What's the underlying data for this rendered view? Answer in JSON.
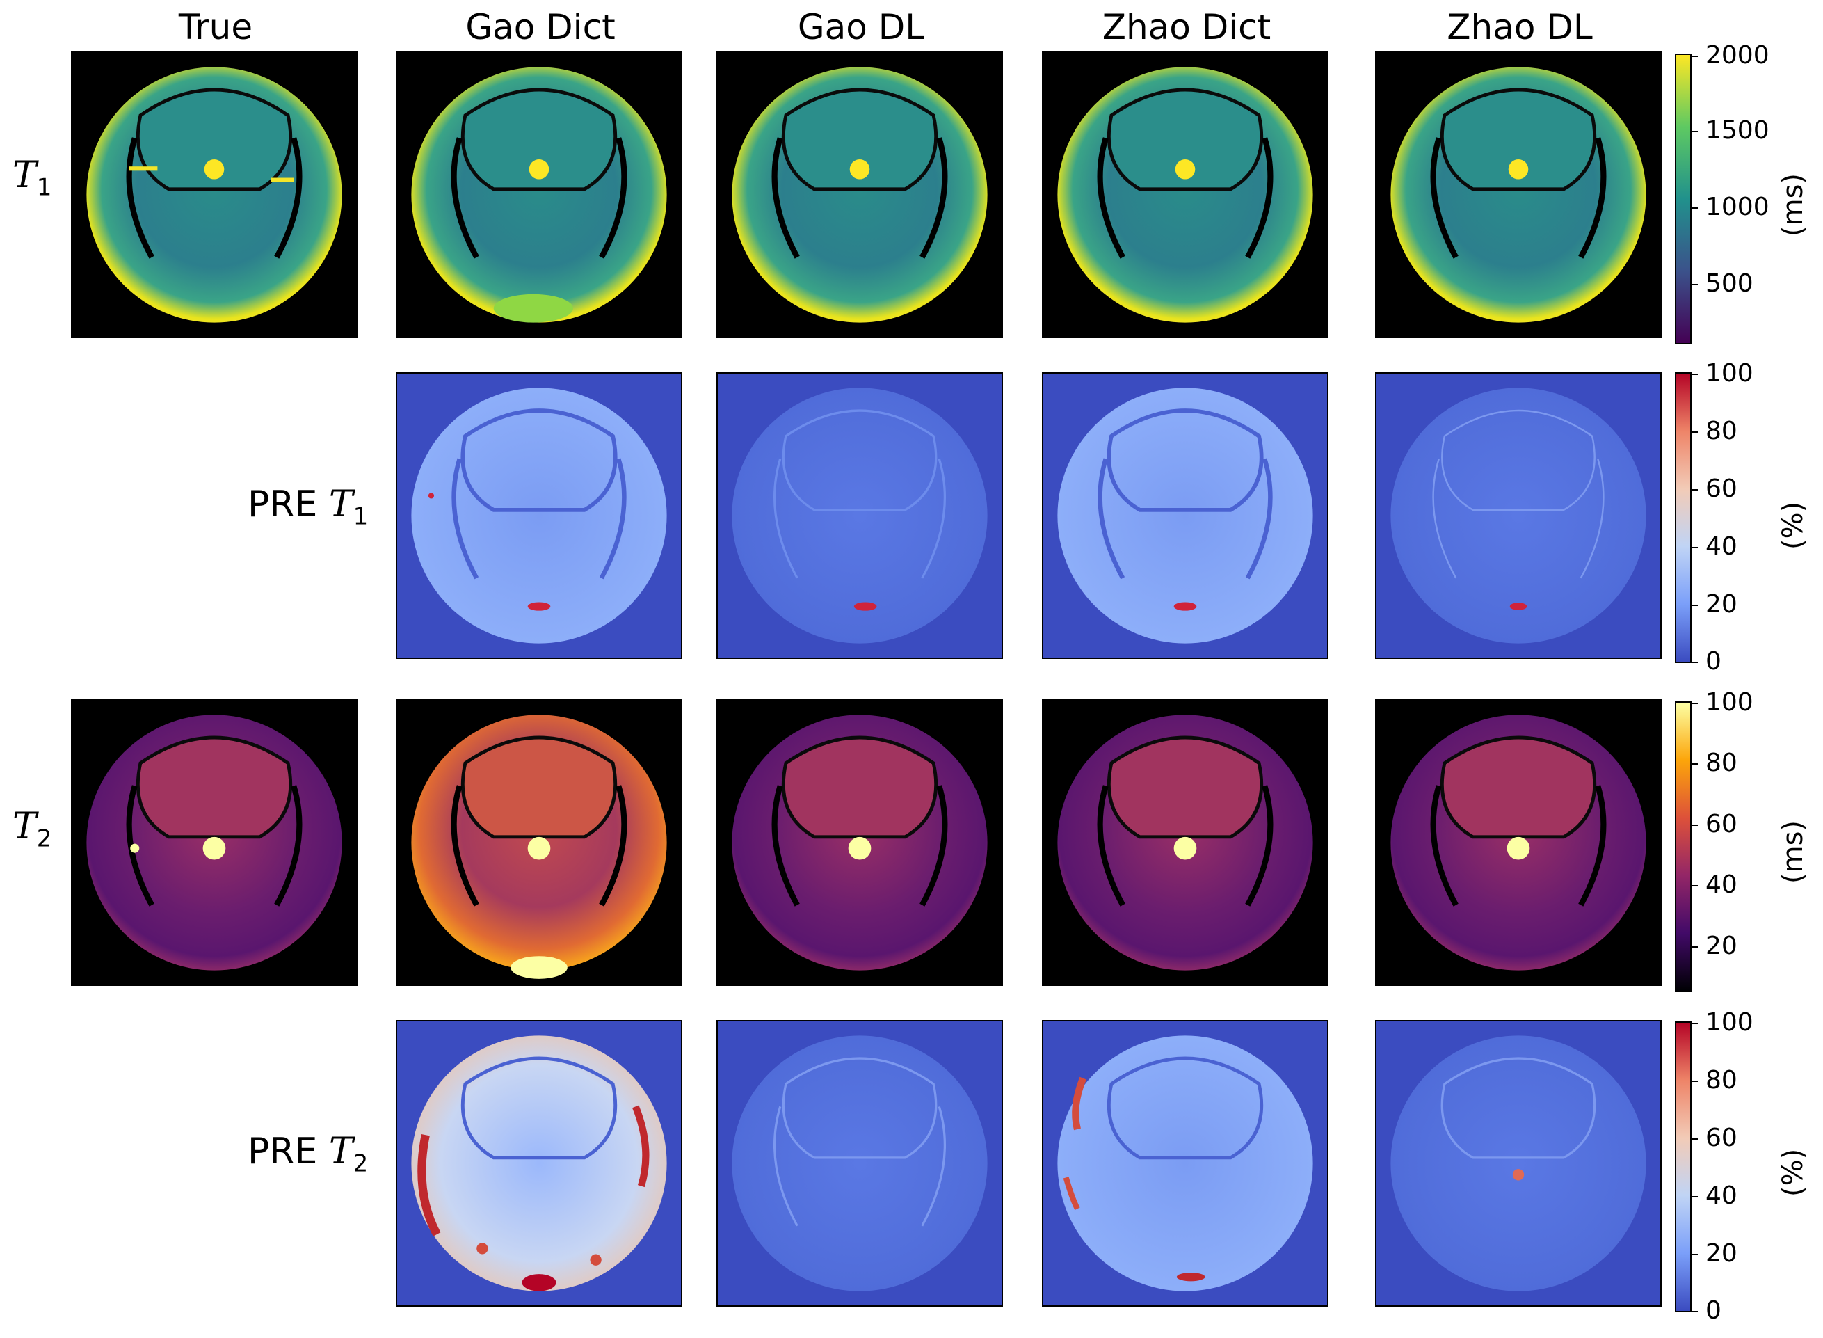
{
  "columns": [
    "True",
    "Gao Dict",
    "Gao DL",
    "Zhao Dict",
    "Zhao DL"
  ],
  "rows": {
    "t1": {
      "prefix": "",
      "symbol": "T",
      "sub": "1"
    },
    "pre_t1": {
      "prefix": "PRE ",
      "symbol": "T",
      "sub": "1"
    },
    "t2": {
      "prefix": "",
      "symbol": "T",
      "sub": "2"
    },
    "pre_t2": {
      "prefix": "PRE ",
      "symbol": "T",
      "sub": "2"
    }
  },
  "colorbars": {
    "t1": {
      "unit": "(ms)",
      "ticks": [
        "2000",
        "1500",
        "1000",
        "500"
      ],
      "colormap": "viridis"
    },
    "pre_t1": {
      "unit": "(%)",
      "ticks": [
        "100",
        "80",
        "60",
        "40",
        "20",
        "0"
      ],
      "colormap": "coolwarm"
    },
    "t2": {
      "unit": "(ms)",
      "ticks": [
        "100",
        "80",
        "60",
        "40",
        "20"
      ],
      "colormap": "inferno"
    },
    "pre_t2": {
      "unit": "(%)",
      "ticks": [
        "100",
        "80",
        "60",
        "40",
        "20",
        "0"
      ],
      "colormap": "coolwarm"
    }
  }
}
